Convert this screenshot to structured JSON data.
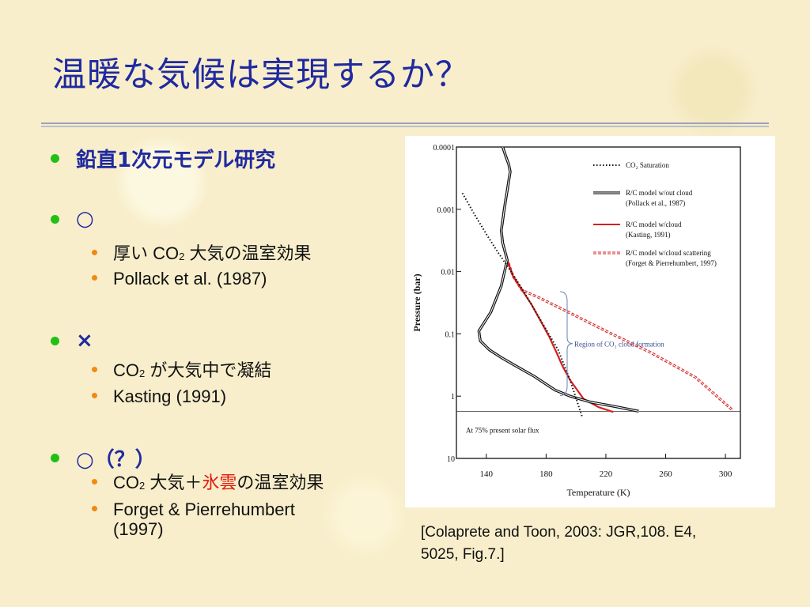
{
  "slide": {
    "title": "温暖な気候は実現するか？",
    "bullets": [
      {
        "text": "鉛直1次元モデル研究",
        "subs": []
      },
      {
        "text": "○",
        "subs": [
          {
            "pre": "厚い CO",
            "sub": "2",
            "post": " 大気の温室効果"
          },
          {
            "text": "Pollack et al. (1987)"
          }
        ]
      },
      {
        "text": "×",
        "subs": [
          {
            "pre": "CO",
            "sub": "2",
            "post": " が大気中で凝結"
          },
          {
            "text": "Kasting (1991)"
          }
        ]
      },
      {
        "text": "○（？）",
        "subs": [
          {
            "pre": "CO",
            "sub": "2",
            "mid": " 大気＋",
            "red": "氷雲",
            "post": "の温室効果"
          },
          {
            "line1": "Forget & Pierrehumbert",
            "line2": "(1997)"
          }
        ]
      }
    ],
    "caption_line1": "[Colaprete and Toon, 2003: JGR,108. E4,",
    "caption_line2": "5025, Fig.7.]"
  },
  "colors": {
    "title": "#1f2aa0",
    "bullet_dot": "#22c016",
    "sub_dot": "#f08a12",
    "highlight": "#e4190e",
    "model_red": "#d42020"
  },
  "chart_data": {
    "type": "line",
    "xlabel": "Temperature (K)",
    "ylabel": "Pressure (bar)",
    "xlim": [
      120,
      310
    ],
    "ylim": [
      0.0001,
      10
    ],
    "yscale": "log",
    "y_inverted": true,
    "x_ticks": [
      140,
      180,
      220,
      260,
      300
    ],
    "y_ticks": [
      {
        "v": 0.0001,
        "label": "0.0001"
      },
      {
        "v": 0.001,
        "label": "0.001"
      },
      {
        "v": 0.01,
        "label": "0.01"
      },
      {
        "v": 0.1,
        "label": "0.1"
      },
      {
        "v": 1,
        "label": "1"
      },
      {
        "v": 10,
        "label": "10"
      }
    ],
    "legend": [
      {
        "label": "CO₂ Saturation",
        "style": "dotted"
      },
      {
        "label": "R/C model w/out cloud",
        "label2": "(Pollack et al., 1987)",
        "style": "double-black"
      },
      {
        "label": "R/C model w/cloud",
        "label2": "(Kasting, 1991)",
        "style": "red"
      },
      {
        "label": "R/C model w/cloud scattering",
        "label2": "(Forget & Pierrehumbert, 1997)",
        "style": "double-red-dashed"
      }
    ],
    "annotation": "Region of CO₂ cloud formation",
    "annotation_range": [
      0.021,
      0.98
    ],
    "surface_pressure": 1.75,
    "surface_label": "At 75% present solar flux",
    "series": [
      {
        "style": "dotted",
        "x": [
          124,
          132,
          140,
          148,
          156,
          164,
          172,
          180,
          188,
          196,
          204
        ],
        "y": [
          0.00055,
          0.0012,
          0.0025,
          0.005,
          0.0095,
          0.019,
          0.04,
          0.085,
          0.18,
          0.55,
          2.1
        ]
      },
      {
        "style": "double-black",
        "x": [
          151,
          153,
          155,
          156,
          155,
          154,
          153,
          152,
          151,
          150,
          151,
          154,
          150,
          143,
          135,
          136,
          142,
          150,
          160,
          172,
          186,
          196,
          210,
          225,
          242
        ],
        "y": [
          0.0001,
          0.00014,
          0.00019,
          0.00025,
          0.00035,
          0.0005,
          0.0007,
          0.001,
          0.0015,
          0.0022,
          0.0035,
          0.0065,
          0.017,
          0.045,
          0.09,
          0.13,
          0.18,
          0.24,
          0.33,
          0.48,
          0.8,
          1.0,
          1.25,
          1.45,
          1.75
        ]
      },
      {
        "style": "red",
        "x": [
          151,
          153,
          155,
          156,
          155,
          154,
          153,
          152,
          151,
          150,
          151,
          154,
          158,
          164,
          170,
          176,
          182,
          187,
          191,
          196,
          205,
          215,
          225
        ],
        "y": [
          0.0001,
          0.00014,
          0.00019,
          0.00025,
          0.00035,
          0.0005,
          0.0007,
          0.001,
          0.0015,
          0.0022,
          0.0035,
          0.0065,
          0.012,
          0.02,
          0.033,
          0.06,
          0.11,
          0.2,
          0.33,
          0.55,
          1.1,
          1.5,
          1.8
        ]
      },
      {
        "style": "double-red-dashed",
        "x": [
          151,
          153,
          155,
          156,
          155,
          154,
          153,
          152,
          151,
          150,
          151,
          154,
          158,
          164,
          175,
          195,
          220,
          250,
          280,
          305
        ],
        "y": [
          0.0001,
          0.00014,
          0.00019,
          0.00025,
          0.00035,
          0.0005,
          0.0007,
          0.001,
          0.0015,
          0.0022,
          0.0035,
          0.0065,
          0.012,
          0.02,
          0.026,
          0.045,
          0.09,
          0.2,
          0.5,
          1.7
        ]
      }
    ]
  }
}
